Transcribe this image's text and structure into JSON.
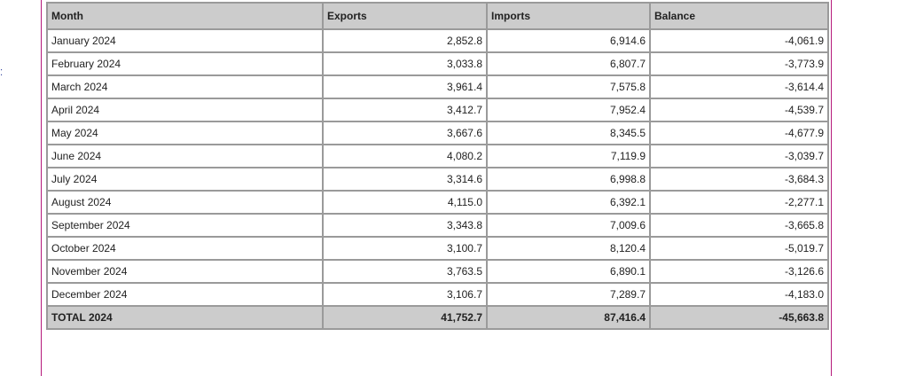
{
  "table": {
    "headers": [
      "Month",
      "Exports",
      "Imports",
      "Balance"
    ],
    "rows": [
      {
        "month": "January 2024",
        "exports": "2,852.8",
        "imports": "6,914.6",
        "balance": "-4,061.9"
      },
      {
        "month": "February 2024",
        "exports": "3,033.8",
        "imports": "6,807.7",
        "balance": "-3,773.9"
      },
      {
        "month": "March 2024",
        "exports": "3,961.4",
        "imports": "7,575.8",
        "balance": "-3,614.4"
      },
      {
        "month": "April 2024",
        "exports": "3,412.7",
        "imports": "7,952.4",
        "balance": "-4,539.7"
      },
      {
        "month": "May 2024",
        "exports": "3,667.6",
        "imports": "8,345.5",
        "balance": "-4,677.9"
      },
      {
        "month": "June 2024",
        "exports": "4,080.2",
        "imports": "7,119.9",
        "balance": "-3,039.7"
      },
      {
        "month": "July 2024",
        "exports": "3,314.6",
        "imports": "6,998.8",
        "balance": "-3,684.3"
      },
      {
        "month": "August 2024",
        "exports": "4,115.0",
        "imports": "6,392.1",
        "balance": "-2,277.1"
      },
      {
        "month": "September 2024",
        "exports": "3,343.8",
        "imports": "7,009.6",
        "balance": "-3,665.8"
      },
      {
        "month": "October 2024",
        "exports": "3,100.7",
        "imports": "8,120.4",
        "balance": "-5,019.7"
      },
      {
        "month": "November 2024",
        "exports": "3,763.5",
        "imports": "6,890.1",
        "balance": "-3,126.6"
      },
      {
        "month": "December 2024",
        "exports": "3,106.7",
        "imports": "7,289.7",
        "balance": "-4,183.0"
      }
    ],
    "total": {
      "month": "TOTAL 2024",
      "exports": "41,752.7",
      "imports": "87,416.4",
      "balance": "-45,663.8"
    }
  },
  "colors": {
    "header_bg": "#cccccc",
    "border": "#9a9a9a",
    "frame_accent": "#b5197a"
  }
}
